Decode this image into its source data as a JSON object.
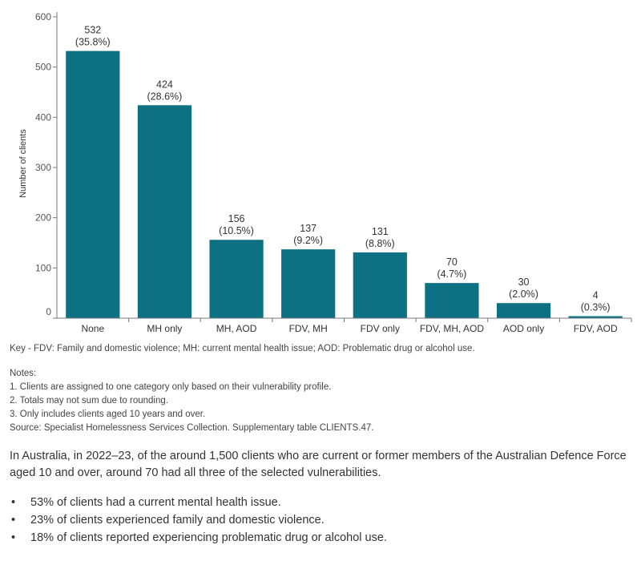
{
  "chart_data": {
    "type": "bar",
    "ylabel": "Number of clients",
    "xlabel": "",
    "title": "",
    "ylim": [
      0,
      600
    ],
    "yticks": [
      0,
      100,
      200,
      300,
      400,
      500,
      600
    ],
    "grid": false,
    "bar_color": "#0e7183",
    "categories": [
      "None",
      "MH only",
      "MH, AOD",
      "FDV, MH",
      "FDV only",
      "FDV, MH, AOD",
      "AOD only",
      "FDV, AOD"
    ],
    "values": [
      532,
      424,
      156,
      137,
      131,
      70,
      30,
      4
    ],
    "value_labels": [
      "532",
      "424",
      "156",
      "137",
      "131",
      "70",
      "30",
      "4"
    ],
    "percent_labels": [
      "(35.8%)",
      "(28.6%)",
      "(10.5%)",
      "(9.2%)",
      "(8.8%)",
      "(4.7%)",
      "(2.0%)",
      "(0.3%)"
    ]
  },
  "key": "Key - FDV: Family and domestic violence; MH: current mental health issue; AOD: Problematic drug or alcohol use.",
  "notes": {
    "heading": "Notes:",
    "items": [
      "1.  Clients are assigned to one category only based on their vulnerability profile.",
      "2.  Totals may not sum due to rounding.",
      "3.  Only includes clients aged 10 years and over."
    ],
    "source": "Source: Specialist Homelessness Services Collection. Supplementary table CLIENTS.47."
  },
  "summary": "In Australia, in 2022–23, of the around 1,500 clients who are current or former members of the Australian Defence Force aged 10 and over, around 70 had all three of the selected vulnerabilities.",
  "bullet_marker": "•",
  "bullets": [
    "53% of clients had a current mental health issue.",
    "23% of clients experienced family and domestic violence.",
    "18% of clients reported experiencing problematic drug or alcohol use."
  ]
}
